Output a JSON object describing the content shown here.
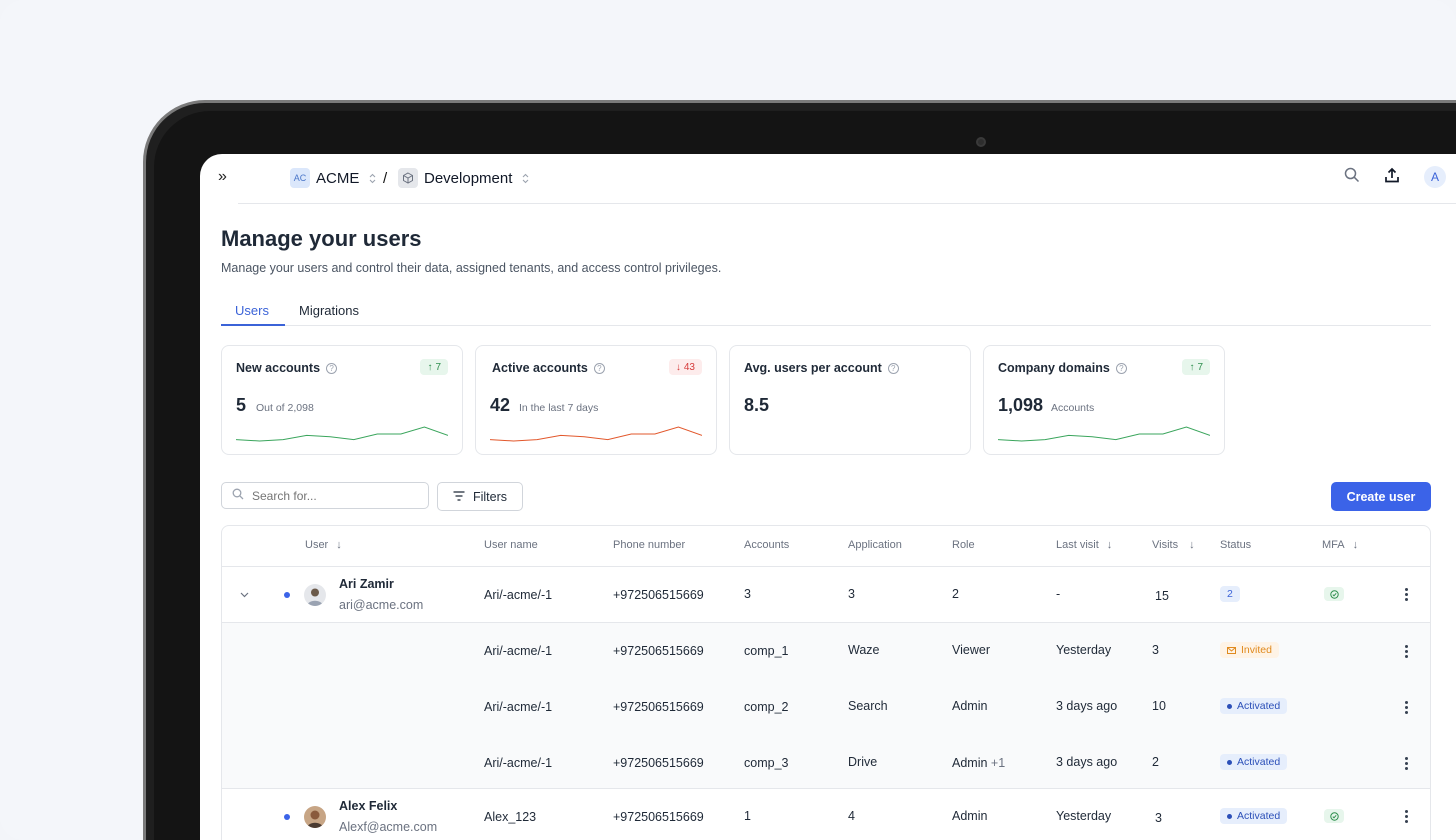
{
  "breadcrumb": {
    "org_badge": "AC",
    "org_name": "ACME",
    "separator": "/",
    "env_name": "Development"
  },
  "topbar": {
    "collapse_glyph": "»",
    "avatar_initial": "A"
  },
  "page": {
    "title": "Manage your users",
    "subtitle": "Manage your users and control their data, assigned tenants, and access control privileges."
  },
  "tabs": [
    {
      "label": "Users",
      "active": true
    },
    {
      "label": "Migrations",
      "active": false
    }
  ],
  "stats": [
    {
      "label": "New accounts",
      "delta": "7",
      "trend": "up",
      "value": "5",
      "note": "Out of 2,098",
      "spark_color": "#3aa55c",
      "spark": [
        4,
        3,
        4,
        7,
        6,
        4,
        8,
        8,
        13,
        7
      ]
    },
    {
      "label": "Active accounts",
      "delta": "43",
      "trend": "down",
      "value": "42",
      "note": "In the last 7 days",
      "spark_color": "#e2572b",
      "spark": [
        4,
        3,
        4,
        7,
        6,
        4,
        8,
        8,
        13,
        7
      ]
    },
    {
      "label": "Avg. users per account",
      "value": "8.5"
    },
    {
      "label": "Company domains",
      "delta": "7",
      "trend": "up",
      "value": "1,098",
      "note": "Accounts",
      "spark_color": "#3aa55c",
      "spark": [
        4,
        3,
        4,
        7,
        6,
        4,
        8,
        8,
        13,
        7
      ]
    }
  ],
  "toolbar": {
    "search_placeholder": "Search for...",
    "filters_label": "Filters",
    "create_label": "Create user"
  },
  "table": {
    "headers": {
      "user": "User",
      "username": "User name",
      "phone": "Phone number",
      "accounts": "Accounts",
      "application": "Application",
      "role": "Role",
      "last_visit": "Last visit",
      "visits": "Visits",
      "status": "Status",
      "mfa": "MFA"
    },
    "rows": [
      {
        "name": "Ari Zamir",
        "email": "ari@acme.com",
        "username": "Ari/-acme/-1",
        "phone": "+972506515669",
        "accounts": "3",
        "application": "3",
        "role": "2",
        "last_visit": "-",
        "visits": "15",
        "status_count": "2"
      },
      {
        "name": "Alex Felix",
        "email": "Alexf@acme.com",
        "username": "Alex_123",
        "phone": "+972506515669",
        "accounts": "1",
        "application": "4",
        "role": "Admin",
        "last_visit": "Yesterday",
        "visits": "3",
        "status": "Activated"
      }
    ],
    "subrows": [
      {
        "username": "Ari/-acme/-1",
        "phone": "+972506515669",
        "account": "comp_1",
        "application": "Waze",
        "role": "Viewer",
        "role_extra": "",
        "last_visit": "Yesterday",
        "visits": "3",
        "status": "Invited"
      },
      {
        "username": "Ari/-acme/-1",
        "phone": "+972506515669",
        "account": "comp_2",
        "application": "Search",
        "role": "Admin",
        "role_extra": "",
        "last_visit": "3 days ago",
        "visits": "10",
        "status": "Activated"
      },
      {
        "username": "Ari/-acme/-1",
        "phone": "+972506515669",
        "account": "comp_3",
        "application": "Drive",
        "role": "Admin",
        "role_extra": "+1",
        "last_visit": "3 days ago",
        "visits": "2",
        "status": "Activated"
      }
    ]
  },
  "colors": {
    "accent": "#3b63e8",
    "success": "#3aa55c",
    "danger": "#e2572b",
    "warning": "#e08a1e"
  }
}
